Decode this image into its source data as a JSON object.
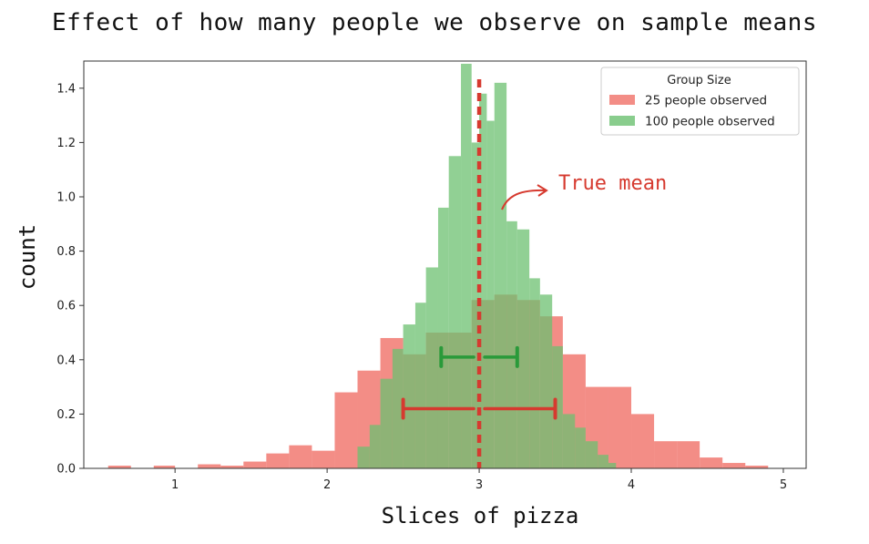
{
  "chart_data": {
    "type": "histogram",
    "title": "Effect of how many people we observe on sample means",
    "xlabel": "Slices of pizza",
    "ylabel": "count",
    "xlim": [
      0.4,
      5.15
    ],
    "ylim": [
      0,
      1.5
    ],
    "xticks": [
      1,
      2,
      3,
      4,
      5
    ],
    "yticks": [
      0.0,
      0.2,
      0.4,
      0.6,
      0.8,
      1.0,
      1.2,
      1.4
    ],
    "legend": {
      "title": "Group Size",
      "position": "top-right",
      "entries": [
        {
          "label": "25 people observed",
          "color": "#f07068"
        },
        {
          "label": "100 people observed",
          "color": "#6cc070"
        }
      ]
    },
    "series": [
      {
        "name": "25 people observed",
        "color": "#f07068",
        "opacity": 0.8,
        "bins": [
          [
            0.56,
            0.71,
            0.01
          ],
          [
            0.71,
            0.86,
            0.0
          ],
          [
            0.86,
            1.0,
            0.01
          ],
          [
            1.0,
            1.15,
            0.0
          ],
          [
            1.15,
            1.3,
            0.015
          ],
          [
            1.3,
            1.45,
            0.01
          ],
          [
            1.45,
            1.6,
            0.025
          ],
          [
            1.6,
            1.75,
            0.055
          ],
          [
            1.75,
            1.9,
            0.085
          ],
          [
            1.9,
            2.05,
            0.065
          ],
          [
            2.05,
            2.2,
            0.28
          ],
          [
            2.2,
            2.35,
            0.36
          ],
          [
            2.35,
            2.5,
            0.48
          ],
          [
            2.5,
            2.65,
            0.42
          ],
          [
            2.65,
            2.8,
            0.5
          ],
          [
            2.8,
            2.95,
            0.5
          ],
          [
            2.95,
            3.1,
            0.62
          ],
          [
            3.1,
            3.25,
            0.64
          ],
          [
            3.25,
            3.4,
            0.62
          ],
          [
            3.4,
            3.55,
            0.56
          ],
          [
            3.55,
            3.7,
            0.42
          ],
          [
            3.7,
            3.85,
            0.3
          ],
          [
            3.85,
            4.0,
            0.3
          ],
          [
            4.0,
            4.15,
            0.2
          ],
          [
            4.15,
            4.3,
            0.1
          ],
          [
            4.3,
            4.45,
            0.1
          ],
          [
            4.45,
            4.6,
            0.04
          ],
          [
            4.6,
            4.75,
            0.02
          ],
          [
            4.75,
            4.9,
            0.01
          ],
          [
            4.9,
            5.0,
            0.0
          ]
        ]
      },
      {
        "name": "100 people observed",
        "color": "#6cc070",
        "opacity": 0.75,
        "bins": [
          [
            2.2,
            2.28,
            0.08
          ],
          [
            2.28,
            2.35,
            0.16
          ],
          [
            2.35,
            2.43,
            0.33
          ],
          [
            2.43,
            2.5,
            0.44
          ],
          [
            2.5,
            2.58,
            0.53
          ],
          [
            2.58,
            2.65,
            0.61
          ],
          [
            2.65,
            2.73,
            0.74
          ],
          [
            2.73,
            2.8,
            0.96
          ],
          [
            2.8,
            2.88,
            1.15
          ],
          [
            2.88,
            2.95,
            1.49
          ],
          [
            2.95,
            3.0,
            1.2
          ],
          [
            3.0,
            3.05,
            1.38
          ],
          [
            3.05,
            3.1,
            1.28
          ],
          [
            3.1,
            3.18,
            1.42
          ],
          [
            3.18,
            3.25,
            0.91
          ],
          [
            3.25,
            3.33,
            0.88
          ],
          [
            3.33,
            3.4,
            0.7
          ],
          [
            3.4,
            3.48,
            0.64
          ],
          [
            3.48,
            3.55,
            0.45
          ],
          [
            3.55,
            3.63,
            0.2
          ],
          [
            3.63,
            3.7,
            0.15
          ],
          [
            3.7,
            3.78,
            0.1
          ],
          [
            3.78,
            3.85,
            0.05
          ],
          [
            3.85,
            3.9,
            0.02
          ]
        ]
      }
    ],
    "mean_line": {
      "x": 3.0,
      "color": "#d63a2f"
    },
    "annotation": {
      "text": "True mean",
      "color": "#d63a2f"
    },
    "ranges": [
      {
        "series": "25 people observed",
        "x_from": 2.5,
        "x_to": 3.5,
        "y": 0.22,
        "color": "#d63a2f"
      },
      {
        "series": "100 people observed",
        "x_from": 2.75,
        "x_to": 3.25,
        "y": 0.41,
        "color": "#2a9a3a"
      }
    ]
  }
}
